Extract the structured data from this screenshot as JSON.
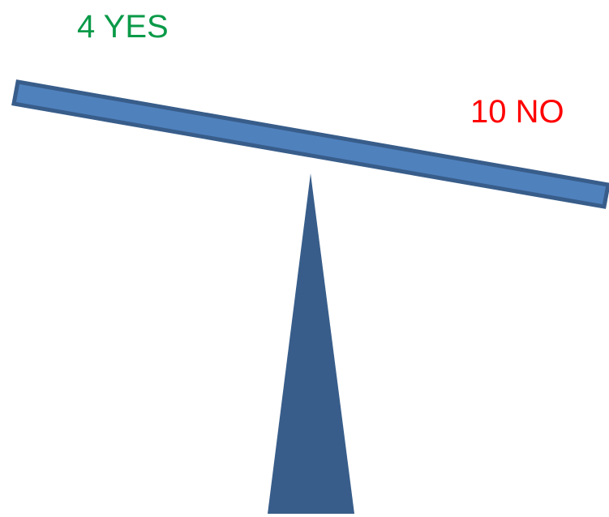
{
  "labels": {
    "yes": "4 YES",
    "no": "10 NO"
  },
  "colors": {
    "yes": "#0a9a48",
    "no": "#ff0000",
    "beam_fill": "#4f81bd",
    "beam_stroke": "#385d8a",
    "fulcrum_fill": "#385d8a"
  },
  "votes": {
    "yes": 4,
    "no": 10
  }
}
